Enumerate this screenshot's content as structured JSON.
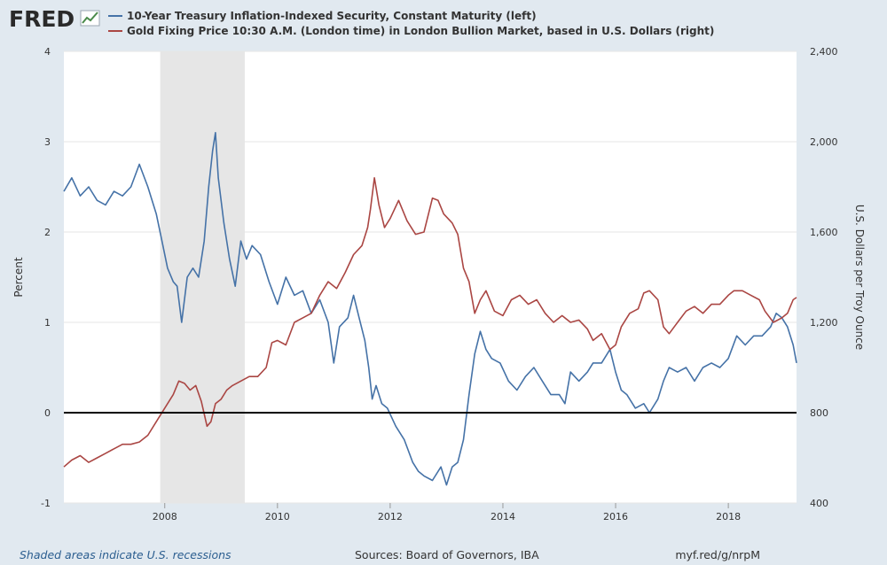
{
  "header": {
    "logo_text": "FRED",
    "legend": [
      {
        "label": "10-Year Treasury Inflation-Indexed Security, Constant Maturity (left)",
        "color": "#4572a7"
      },
      {
        "label": "Gold Fixing Price 10:30 A.M. (London time) in London Bullion Market, based in U.S. Dollars (right)",
        "color": "#aa4643"
      }
    ]
  },
  "footer": {
    "recession_note": "Shaded areas indicate U.S. recessions",
    "sources": "Sources: Board of Governors, IBA",
    "short_url": "myf.red/g/nrpM"
  },
  "colors": {
    "background": "#e1e9f0",
    "plot_background": "#ffffff",
    "recession_shade": "#e6e6e6",
    "series_left": "#4572a7",
    "series_right": "#aa4643",
    "zero_line": "#000000",
    "grid": "#e6e6e6"
  },
  "chart_data": {
    "type": "line",
    "x_range": [
      2006.21,
      2019.21
    ],
    "x_ticks": [
      2008,
      2010,
      2012,
      2014,
      2016,
      2018
    ],
    "x_tick_labels": [
      "2008",
      "2010",
      "2012",
      "2014",
      "2016",
      "2018"
    ],
    "left_axis": {
      "label": "Percent",
      "ylim": [
        -1,
        4
      ],
      "ticks": [
        -1,
        0,
        1,
        2,
        3,
        4
      ],
      "tick_labels": [
        "-1",
        "0",
        "1",
        "2",
        "3",
        "4"
      ]
    },
    "right_axis": {
      "label": "U.S. Dollars per Troy Ounce",
      "ylim": [
        400,
        2400
      ],
      "ticks": [
        400,
        800,
        1200,
        1600,
        2000,
        2400
      ],
      "tick_labels": [
        "400",
        "800",
        "1,200",
        "1,600",
        "2,000",
        "2,400"
      ]
    },
    "recessions": [
      [
        2007.92,
        2009.42
      ]
    ],
    "reference_line": {
      "axis": "left",
      "value": 0
    },
    "grid": true,
    "series": [
      {
        "name": "10-Year Treasury Inflation-Indexed Security, Constant Maturity (left)",
        "axis": "left",
        "color": "#4572a7",
        "x": [
          2006.21,
          2006.35,
          2006.5,
          2006.65,
          2006.8,
          2006.95,
          2007.1,
          2007.25,
          2007.4,
          2007.55,
          2007.7,
          2007.85,
          2007.95,
          2008.05,
          2008.15,
          2008.22,
          2008.3,
          2008.4,
          2008.5,
          2008.6,
          2008.7,
          2008.78,
          2008.85,
          2008.9,
          2008.95,
          2009.05,
          2009.15,
          2009.25,
          2009.35,
          2009.45,
          2009.55,
          2009.7,
          2009.85,
          2010.0,
          2010.15,
          2010.3,
          2010.45,
          2010.6,
          2010.75,
          2010.9,
          2011.0,
          2011.1,
          2011.25,
          2011.35,
          2011.45,
          2011.55,
          2011.62,
          2011.68,
          2011.75,
          2011.85,
          2011.95,
          2012.1,
          2012.25,
          2012.4,
          2012.5,
          2012.6,
          2012.75,
          2012.9,
          2013.0,
          2013.1,
          2013.2,
          2013.3,
          2013.4,
          2013.5,
          2013.6,
          2013.7,
          2013.8,
          2013.95,
          2014.1,
          2014.25,
          2014.4,
          2014.55,
          2014.7,
          2014.85,
          2015.0,
          2015.1,
          2015.2,
          2015.35,
          2015.5,
          2015.6,
          2015.75,
          2015.9,
          2016.0,
          2016.1,
          2016.2,
          2016.35,
          2016.5,
          2016.6,
          2016.75,
          2016.85,
          2016.95,
          2017.1,
          2017.25,
          2017.4,
          2017.55,
          2017.7,
          2017.85,
          2018.0,
          2018.15,
          2018.3,
          2018.45,
          2018.6,
          2018.75,
          2018.85,
          2018.95,
          2019.05,
          2019.15,
          2019.21
        ],
        "values": [
          2.45,
          2.6,
          2.4,
          2.5,
          2.35,
          2.3,
          2.45,
          2.4,
          2.5,
          2.75,
          2.5,
          2.2,
          1.9,
          1.6,
          1.45,
          1.4,
          1.0,
          1.5,
          1.6,
          1.5,
          1.9,
          2.5,
          2.9,
          3.1,
          2.6,
          2.1,
          1.7,
          1.4,
          1.9,
          1.7,
          1.85,
          1.75,
          1.45,
          1.2,
          1.5,
          1.3,
          1.35,
          1.1,
          1.25,
          1.0,
          0.55,
          0.95,
          1.05,
          1.3,
          1.05,
          0.8,
          0.5,
          0.15,
          0.3,
          0.1,
          0.05,
          -0.15,
          -0.3,
          -0.55,
          -0.65,
          -0.7,
          -0.75,
          -0.6,
          -0.8,
          -0.6,
          -0.55,
          -0.3,
          0.2,
          0.65,
          0.9,
          0.7,
          0.6,
          0.55,
          0.35,
          0.25,
          0.4,
          0.5,
          0.35,
          0.2,
          0.2,
          0.1,
          0.45,
          0.35,
          0.45,
          0.55,
          0.55,
          0.7,
          0.45,
          0.25,
          0.2,
          0.05,
          0.1,
          0.0,
          0.15,
          0.35,
          0.5,
          0.45,
          0.5,
          0.35,
          0.5,
          0.55,
          0.5,
          0.6,
          0.85,
          0.75,
          0.85,
          0.85,
          0.95,
          1.1,
          1.05,
          0.95,
          0.75,
          0.55
        ]
      },
      {
        "name": "Gold Fixing Price 10:30 A.M. (London time) in London Bullion Market, based in U.S. Dollars (right)",
        "axis": "right",
        "color": "#aa4643",
        "x": [
          2006.21,
          2006.35,
          2006.5,
          2006.65,
          2006.8,
          2006.95,
          2007.1,
          2007.25,
          2007.4,
          2007.55,
          2007.7,
          2007.85,
          2008.0,
          2008.15,
          2008.25,
          2008.35,
          2008.45,
          2008.55,
          2008.65,
          2008.75,
          2008.82,
          2008.9,
          2009.0,
          2009.1,
          2009.2,
          2009.35,
          2009.5,
          2009.65,
          2009.8,
          2009.9,
          2010.0,
          2010.15,
          2010.3,
          2010.45,
          2010.6,
          2010.75,
          2010.9,
          2011.05,
          2011.2,
          2011.35,
          2011.5,
          2011.6,
          2011.65,
          2011.72,
          2011.8,
          2011.9,
          2012.0,
          2012.15,
          2012.3,
          2012.45,
          2012.6,
          2012.75,
          2012.85,
          2012.95,
          2013.1,
          2013.2,
          2013.3,
          2013.4,
          2013.5,
          2013.6,
          2013.7,
          2013.85,
          2014.0,
          2014.15,
          2014.3,
          2014.45,
          2014.6,
          2014.75,
          2014.9,
          2015.05,
          2015.2,
          2015.35,
          2015.5,
          2015.6,
          2015.75,
          2015.9,
          2016.0,
          2016.1,
          2016.25,
          2016.4,
          2016.5,
          2016.6,
          2016.75,
          2016.85,
          2016.95,
          2017.1,
          2017.25,
          2017.4,
          2017.55,
          2017.7,
          2017.85,
          2018.0,
          2018.1,
          2018.25,
          2018.4,
          2018.55,
          2018.65,
          2018.8,
          2018.95,
          2019.05,
          2019.15,
          2019.21
        ],
        "values": [
          560,
          590,
          610,
          580,
          600,
          620,
          640,
          660,
          660,
          670,
          700,
          760,
          820,
          880,
          940,
          930,
          900,
          920,
          850,
          740,
          760,
          840,
          860,
          900,
          920,
          940,
          960,
          960,
          1000,
          1110,
          1120,
          1100,
          1200,
          1220,
          1240,
          1320,
          1380,
          1350,
          1420,
          1500,
          1540,
          1620,
          1700,
          1840,
          1720,
          1620,
          1660,
          1740,
          1650,
          1590,
          1600,
          1750,
          1740,
          1680,
          1640,
          1590,
          1440,
          1380,
          1240,
          1300,
          1340,
          1250,
          1230,
          1300,
          1320,
          1280,
          1300,
          1240,
          1200,
          1230,
          1200,
          1210,
          1170,
          1120,
          1150,
          1080,
          1100,
          1180,
          1240,
          1260,
          1330,
          1340,
          1300,
          1180,
          1150,
          1200,
          1250,
          1270,
          1240,
          1280,
          1280,
          1320,
          1340,
          1340,
          1320,
          1300,
          1250,
          1200,
          1220,
          1240,
          1300,
          1310
        ]
      }
    ]
  }
}
